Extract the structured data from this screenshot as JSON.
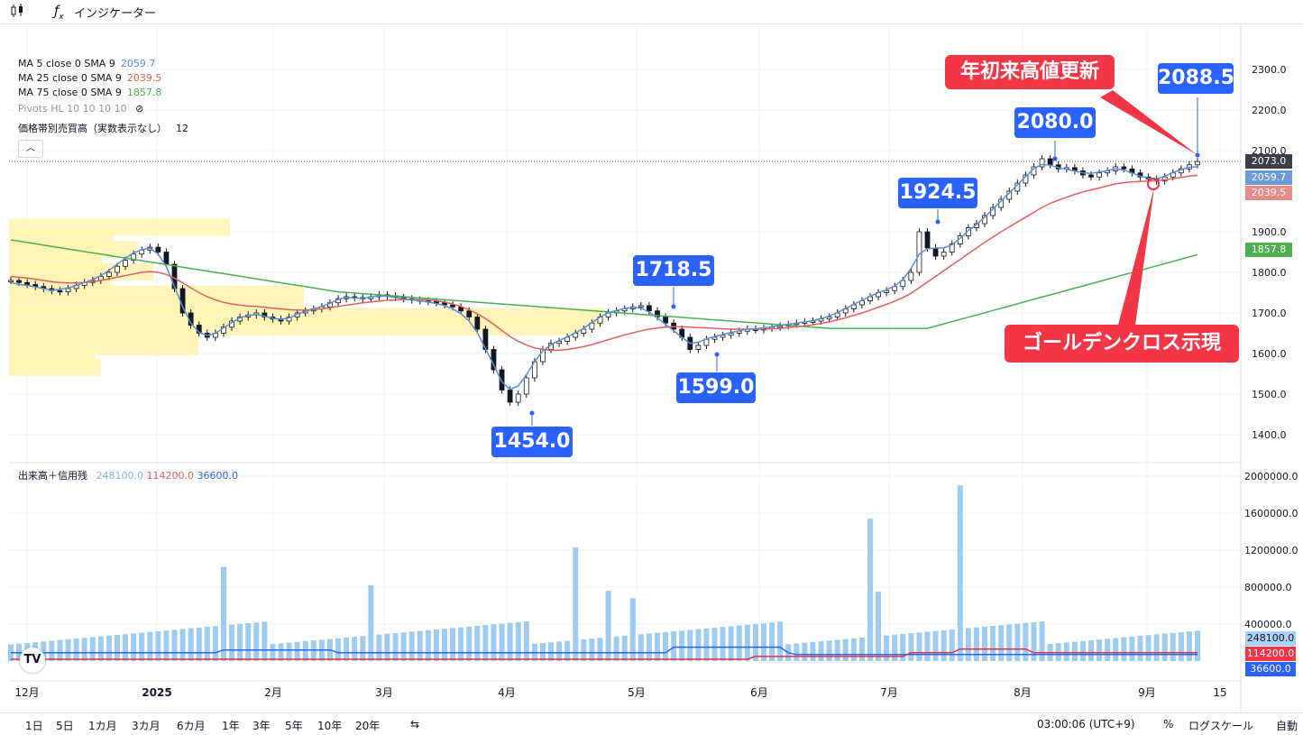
{
  "toolbar": {
    "indicators_label": "インジケーター",
    "candle_icon": "candlestick-icon",
    "fx_icon": "fx-icon"
  },
  "legend": {
    "ma5": {
      "label": "MA 5 close 0 SMA 9",
      "value": "2059.7",
      "color": "#5b8fd6"
    },
    "ma25": {
      "label": "MA 25 close 0 SMA 9",
      "value": "2039.5",
      "color": "#e0605e"
    },
    "ma75": {
      "label": "MA 75 close 0 SMA 9",
      "value": "1857.8",
      "color": "#4caf50"
    },
    "pivots": "Pivots HL 10 10 10 10",
    "volume_profile": {
      "label": "価格帯別売買高（実数表示なし）",
      "value": "12"
    },
    "volume": {
      "label": "出来高＋信用残",
      "v1": "248100.0",
      "v2": "114200.0",
      "v3": "36600.0"
    }
  },
  "callouts": {
    "c2088": "2088.5",
    "c2080": "2080.0",
    "c1924": "1924.5",
    "c1718": "1718.5",
    "c1599": "1599.0",
    "c1454": "1454.0",
    "ytd_high": "年初来高値更新",
    "golden_cross": "ゴールデンクロス示現"
  },
  "price_tags": {
    "last": "2073.0",
    "ma5": "2059.7",
    "ma25": "2039.5",
    "ma75": "1857.8"
  },
  "volume_tags": {
    "v1": "248100.0",
    "v2": "114200.0",
    "v3": "36600.0"
  },
  "bottom": {
    "timeframes": [
      "1日",
      "5日",
      "1カ月",
      "3カ月",
      "6カ月",
      "1年",
      "3年",
      "5年",
      "10年",
      "20年"
    ],
    "clock": "03:00:06 (UTC+9)",
    "percent": "%",
    "log": "ログスケール",
    "auto": "自動"
  },
  "chart_data": {
    "type": "line",
    "price_axis": {
      "ticks": [
        1400,
        1500,
        1600,
        1700,
        1800,
        1900,
        2100,
        2200,
        2300
      ],
      "labels": [
        "1400.0",
        "1500.0",
        "1600.0",
        "1700.0",
        "1800.0",
        "1900.0",
        "2100.0",
        "2200.0",
        "2300.0"
      ],
      "range": [
        1340,
        2340
      ]
    },
    "volume_axis": {
      "ticks": [
        400000,
        800000,
        1200000,
        1600000,
        2000000
      ],
      "labels": [
        "400000.0",
        "800000.0",
        "1200000.0",
        "1600000.0",
        "2000000.0"
      ],
      "range": [
        0,
        2000000
      ]
    },
    "x_labels": [
      "12月",
      "2025",
      "2月",
      "3月",
      "4月",
      "5月",
      "6月",
      "7月",
      "8月",
      "9月",
      "15"
    ],
    "close": [
      1780,
      1775,
      1770,
      1765,
      1760,
      1755,
      1752,
      1760,
      1768,
      1775,
      1780,
      1790,
      1800,
      1815,
      1830,
      1845,
      1855,
      1862,
      1850,
      1820,
      1760,
      1700,
      1670,
      1650,
      1640,
      1650,
      1665,
      1680,
      1690,
      1695,
      1700,
      1690,
      1685,
      1680,
      1690,
      1700,
      1705,
      1710,
      1715,
      1725,
      1735,
      1740,
      1738,
      1735,
      1740,
      1745,
      1742,
      1738,
      1735,
      1732,
      1730,
      1728,
      1725,
      1720,
      1715,
      1705,
      1690,
      1660,
      1610,
      1560,
      1510,
      1480,
      1500,
      1540,
      1580,
      1610,
      1625,
      1630,
      1640,
      1650,
      1660,
      1675,
      1690,
      1700,
      1705,
      1710,
      1715,
      1718,
      1705,
      1690,
      1675,
      1660,
      1640,
      1610,
      1620,
      1635,
      1640,
      1645,
      1650,
      1655,
      1660,
      1658,
      1662,
      1665,
      1668,
      1672,
      1675,
      1678,
      1680,
      1685,
      1690,
      1700,
      1710,
      1720,
      1730,
      1740,
      1750,
      1755,
      1765,
      1780,
      1800,
      1900,
      1860,
      1840,
      1850,
      1870,
      1890,
      1910,
      1920,
      1940,
      1960,
      1980,
      2000,
      2020,
      2040,
      2060,
      2080,
      2065,
      2055,
      2058,
      2050,
      2040,
      2035,
      2045,
      2050,
      2060,
      2055,
      2045,
      2035,
      2030,
      2025,
      2035,
      2045,
      2055,
      2065,
      2073
    ],
    "ma5": [
      1775,
      1770,
      1768,
      1764,
      1760,
      1756,
      1758,
      1762,
      1768,
      1775,
      1782,
      1792,
      1805,
      1820,
      1835,
      1848,
      1856,
      1860,
      1845,
      1815,
      1765,
      1715,
      1675,
      1652,
      1645,
      1650,
      1663,
      1676,
      1688,
      1694,
      1696,
      1692,
      1687,
      1684,
      1688,
      1697,
      1704,
      1710,
      1716,
      1724,
      1733,
      1738,
      1737,
      1736,
      1739,
      1742,
      1741,
      1738,
      1735,
      1732,
      1730,
      1727,
      1723,
      1718,
      1710,
      1698,
      1680,
      1652,
      1612,
      1572,
      1530,
      1512,
      1520,
      1548,
      1580,
      1606,
      1622,
      1632,
      1641,
      1651,
      1662,
      1676,
      1690,
      1700,
      1706,
      1711,
      1714,
      1712,
      1702,
      1688,
      1672,
      1656,
      1640,
      1625,
      1628,
      1636,
      1642,
      1647,
      1652,
      1656,
      1660,
      1661,
      1663,
      1666,
      1669,
      1672,
      1675,
      1678,
      1681,
      1686,
      1692,
      1701,
      1711,
      1721,
      1731,
      1741,
      1750,
      1757,
      1767,
      1782,
      1810,
      1845,
      1858,
      1860,
      1860,
      1868,
      1884,
      1903,
      1918,
      1936,
      1956,
      1976,
      1996,
      2016,
      2036,
      2056,
      2066,
      2064,
      2058,
      2054,
      2050,
      2045,
      2044,
      2047,
      2051,
      2055,
      2052,
      2045,
      2037,
      2032,
      2030,
      2037,
      2046,
      2053,
      2059,
      2060
    ],
    "ma25": [
      1790,
      1788,
      1786,
      1783,
      1780,
      1777,
      1775,
      1774,
      1774,
      1775,
      1777,
      1780,
      1784,
      1788,
      1792,
      1796,
      1800,
      1802,
      1800,
      1795,
      1786,
      1774,
      1762,
      1750,
      1740,
      1732,
      1726,
      1722,
      1719,
      1717,
      1716,
      1714,
      1712,
      1710,
      1708,
      1707,
      1707,
      1708,
      1710,
      1713,
      1716,
      1719,
      1722,
      1725,
      1727,
      1729,
      1731,
      1732,
      1733,
      1733,
      1733,
      1732,
      1730,
      1727,
      1722,
      1716,
      1708,
      1698,
      1686,
      1672,
      1657,
      1642,
      1630,
      1621,
      1614,
      1610,
      1608,
      1608,
      1610,
      1613,
      1617,
      1622,
      1628,
      1634,
      1640,
      1646,
      1651,
      1656,
      1660,
      1663,
      1665,
      1666,
      1666,
      1665,
      1664,
      1663,
      1662,
      1661,
      1660,
      1660,
      1660,
      1660,
      1660,
      1661,
      1662,
      1664,
      1666,
      1668,
      1671,
      1674,
      1678,
      1683,
      1688,
      1694,
      1700,
      1707,
      1714,
      1721,
      1729,
      1738,
      1748,
      1762,
      1776,
      1790,
      1804,
      1818,
      1832,
      1846,
      1860,
      1874,
      1887,
      1900,
      1912,
      1924,
      1936,
      1948,
      1960,
      1970,
      1978,
      1985,
      1992,
      1998,
      2003,
      2008,
      2013,
      2018,
      2021,
      2023,
      2024,
      2025,
      2026,
      2028,
      2031,
      2034,
      2037,
      2039
    ]
  }
}
